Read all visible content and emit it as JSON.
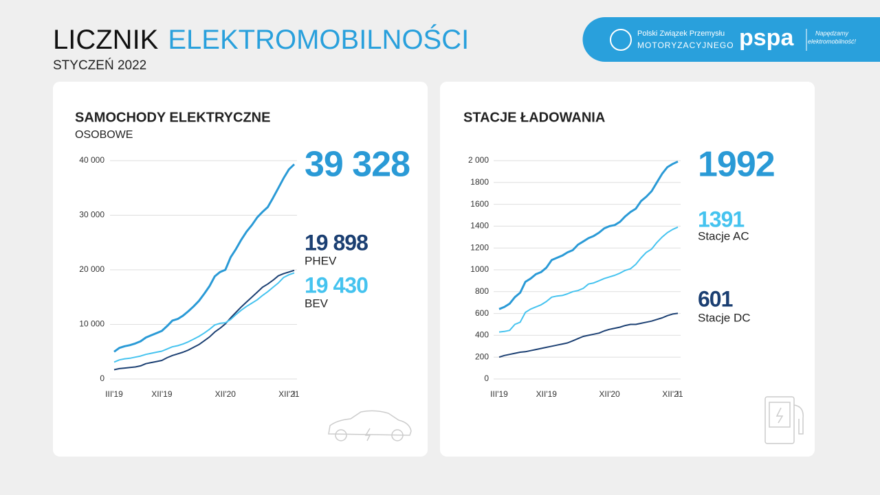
{
  "header": {
    "title": [
      "LICZNIK",
      "ELEKTROMOBILNOŚCI"
    ],
    "subtitle": "STYCZEŃ 2022"
  },
  "logos": {
    "pzpm": [
      "Polski Związek Przemysłu",
      "MOTORYZACYJNEGO"
    ],
    "pspa": "pspa",
    "pspa_slogan": [
      "Napędzamy",
      "elektromobilność!"
    ]
  },
  "chart_data": [
    {
      "type": "line",
      "title": "SAMOCHODY ELEKTRYCZNE",
      "subtitle": "OSOBOWE",
      "categories": [
        "III'19",
        null,
        null,
        null,
        null,
        null,
        null,
        null,
        null,
        "XII'19",
        null,
        null,
        null,
        null,
        null,
        null,
        null,
        null,
        null,
        null,
        null,
        "XII'20",
        null,
        null,
        null,
        null,
        null,
        null,
        null,
        null,
        null,
        null,
        null,
        "XII'21",
        "I"
      ],
      "ylim": [
        0,
        40000
      ],
      "yticks": [
        0,
        {
          "value": 10000,
          "label": "10 000"
        },
        {
          "value": 20000,
          "label": "20 000"
        },
        {
          "value": 30000,
          "label": "30 000"
        },
        {
          "value": 40000,
          "label": "40 000"
        }
      ],
      "grid": true,
      "series": [
        {
          "color": "#2a9ad6",
          "values": [
            5000,
            5700,
            6000,
            6200,
            6500,
            6900,
            7600,
            8000,
            8400,
            8800,
            9700,
            10700,
            11000,
            11600,
            12400,
            13300,
            14300,
            15600,
            17000,
            18800,
            19600,
            20000,
            22300,
            23800,
            25500,
            27000,
            28200,
            29600,
            30600,
            31500,
            33200,
            35000,
            36800,
            38400,
            39328
          ],
          "value_labels": [
            null,
            null,
            null,
            null,
            null,
            null,
            null,
            null,
            null,
            null,
            null,
            null,
            null,
            null,
            null,
            null,
            null,
            null,
            null,
            null,
            null,
            null,
            null,
            null,
            null,
            null,
            null,
            null,
            null,
            null,
            null,
            null,
            null,
            null,
            "39 328"
          ]
        },
        {
          "name": "PHEV",
          "color": "#1b3f72",
          "values": [
            1700,
            1900,
            2000,
            2100,
            2200,
            2400,
            2800,
            3000,
            3200,
            3400,
            3900,
            4300,
            4600,
            4900,
            5300,
            5800,
            6300,
            7000,
            7700,
            8600,
            9300,
            10100,
            11200,
            12200,
            13200,
            14100,
            15000,
            15900,
            16800,
            17400,
            18100,
            18900,
            19300,
            19600,
            19898
          ],
          "value_labels": [
            null,
            null,
            null,
            null,
            null,
            null,
            null,
            null,
            null,
            null,
            null,
            null,
            null,
            null,
            null,
            null,
            null,
            null,
            null,
            null,
            null,
            null,
            null,
            null,
            null,
            null,
            null,
            null,
            null,
            null,
            null,
            null,
            null,
            null,
            "19 898"
          ]
        },
        {
          "name": "BEV",
          "color": "#45c3ef",
          "values": [
            3100,
            3500,
            3700,
            3800,
            4000,
            4200,
            4500,
            4700,
            4900,
            5100,
            5500,
            5900,
            6100,
            6400,
            6800,
            7300,
            7800,
            8400,
            9100,
            9900,
            10200,
            10300,
            10900,
            11800,
            12600,
            13300,
            13900,
            14500,
            15300,
            16000,
            16800,
            17600,
            18600,
            19100,
            19430
          ],
          "value_labels": [
            null,
            null,
            null,
            null,
            null,
            null,
            null,
            null,
            null,
            null,
            null,
            null,
            null,
            null,
            null,
            null,
            null,
            null,
            null,
            null,
            null,
            null,
            null,
            null,
            null,
            null,
            null,
            null,
            null,
            null,
            null,
            null,
            null,
            null,
            "19 430"
          ]
        }
      ]
    },
    {
      "type": "line",
      "title": "STACJE ŁADOWANIA",
      "categories": [
        "III'19",
        null,
        null,
        null,
        null,
        null,
        null,
        null,
        null,
        "XII'19",
        null,
        null,
        null,
        null,
        null,
        null,
        null,
        null,
        null,
        null,
        null,
        "XII'20",
        null,
        null,
        null,
        null,
        null,
        null,
        null,
        null,
        null,
        null,
        null,
        "XII'21",
        "I"
      ],
      "ylim": [
        0,
        2000
      ],
      "yticks": [
        0,
        200,
        400,
        600,
        800,
        1000,
        1200,
        1400,
        1600,
        1800,
        {
          "value": 2000,
          "label": "2 000"
        }
      ],
      "grid": true,
      "series": [
        {
          "color": "#2a9ad6",
          "values": [
            640,
            660,
            690,
            750,
            790,
            890,
            920,
            960,
            980,
            1020,
            1090,
            1110,
            1130,
            1160,
            1180,
            1230,
            1260,
            1290,
            1310,
            1340,
            1380,
            1400,
            1410,
            1440,
            1490,
            1530,
            1560,
            1630,
            1670,
            1720,
            1800,
            1880,
            1940,
            1970,
            1992
          ]
        },
        {
          "name": "Stacje AC",
          "color": "#45c3ef",
          "values": [
            430,
            435,
            445,
            500,
            520,
            610,
            640,
            660,
            680,
            710,
            750,
            760,
            765,
            780,
            800,
            810,
            830,
            870,
            880,
            900,
            920,
            935,
            950,
            970,
            995,
            1010,
            1050,
            1110,
            1160,
            1190,
            1250,
            1300,
            1340,
            1370,
            1391
          ]
        },
        {
          "name": "Stacje DC",
          "color": "#1b3f72",
          "values": [
            200,
            215,
            225,
            235,
            245,
            250,
            260,
            270,
            280,
            290,
            300,
            310,
            320,
            330,
            350,
            370,
            390,
            400,
            410,
            420,
            440,
            455,
            465,
            475,
            490,
            500,
            500,
            510,
            520,
            530,
            545,
            560,
            580,
            595,
            601
          ]
        }
      ]
    }
  ]
}
